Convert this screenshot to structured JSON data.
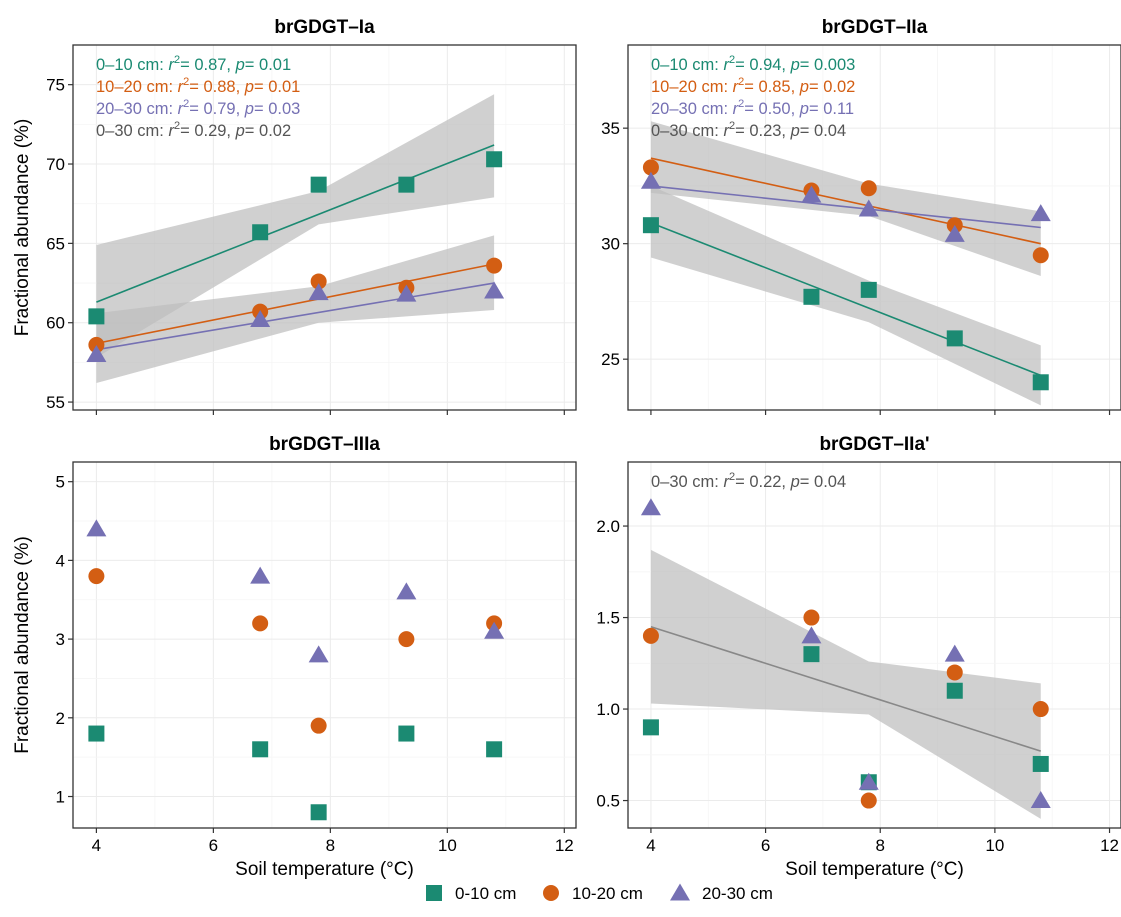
{
  "legend": {
    "items": [
      {
        "label": "0-10 cm",
        "shape": "square",
        "color": "#1b8a72"
      },
      {
        "label": "10-20 cm",
        "shape": "circle",
        "color": "#d35e13"
      },
      {
        "label": "20-30 cm",
        "shape": "triangle",
        "color": "#7570b3"
      }
    ]
  },
  "colors": {
    "depth_0_10": "#1b8a72",
    "depth_10_20": "#d35e13",
    "depth_20_30": "#7570b3",
    "depth_0_30": "#555555",
    "confidence_band": "#bebebe"
  },
  "chart_data": [
    {
      "type": "scatter",
      "title": "brGDGT–Ia",
      "ylabel": "Fractional abundance (%)",
      "xlabel": "",
      "show_x_tick_labels": false,
      "xlim": [
        3.6,
        12.2
      ],
      "ylim": [
        54.5,
        77.5
      ],
      "x_ticks": [
        4,
        6,
        8,
        10,
        12
      ],
      "y_ticks": [
        55,
        60,
        65,
        70,
        75
      ],
      "grid": true,
      "x": [
        4,
        6.8,
        7.8,
        9.3,
        10.8
      ],
      "series": [
        {
          "name": "0-10 cm",
          "shape": "square",
          "color": "#1b8a72",
          "values": [
            60.4,
            65.7,
            68.7,
            68.7,
            70.3
          ]
        },
        {
          "name": "10-20 cm",
          "shape": "circle",
          "color": "#d35e13",
          "values": [
            58.6,
            60.7,
            62.6,
            62.2,
            63.6
          ]
        },
        {
          "name": "20-30 cm",
          "shape": "triangle",
          "color": "#7570b3",
          "values": [
            58.0,
            60.2,
            61.9,
            61.8,
            62.0
          ]
        }
      ],
      "fits": [
        {
          "series": "0-10 cm",
          "color": "#1b8a72",
          "x": [
            4,
            10.8
          ],
          "y": [
            61.3,
            71.2
          ],
          "band_x": [
            4,
            7.8,
            10.8
          ],
          "band_lower": [
            57.8,
            66.2,
            67.9
          ],
          "band_upper": [
            64.9,
            68.3,
            74.4
          ]
        },
        {
          "series": "10-20 cm",
          "color": "#d35e13",
          "x": [
            4,
            10.8
          ],
          "y": [
            58.7,
            63.7
          ],
          "band": false
        },
        {
          "series": "20-30 cm",
          "color": "#7570b3",
          "x": [
            4,
            10.8
          ],
          "y": [
            58.3,
            62.5
          ],
          "band_x": [
            4,
            7.8,
            10.8
          ],
          "band_lower": [
            56.2,
            60.0,
            60.8
          ],
          "band_upper": [
            60.6,
            62.3,
            65.5
          ]
        }
      ],
      "annotations": [
        {
          "depth": "0–10 cm: ",
          "r2": "= 0.87",
          "p": "= 0.01",
          "color": "#1b8a72"
        },
        {
          "depth": "10–20 cm: ",
          "r2": "= 0.88",
          "p": "= 0.01",
          "color": "#d35e13"
        },
        {
          "depth": "20–30 cm: ",
          "r2": "= 0.79",
          "p": "= 0.03",
          "color": "#7570b3"
        },
        {
          "depth": "0–30 cm: ",
          "r2": "= 0.29",
          "p": "= 0.02",
          "color": "#555555"
        }
      ]
    },
    {
      "type": "scatter",
      "title": "brGDGT–IIa",
      "ylabel": "",
      "xlabel": "",
      "show_x_tick_labels": false,
      "xlim": [
        3.6,
        12.2
      ],
      "ylim": [
        22.8,
        38.6
      ],
      "x_ticks": [
        4,
        6,
        8,
        10,
        12
      ],
      "y_ticks": [
        25,
        30,
        35
      ],
      "grid": true,
      "x": [
        4,
        6.8,
        7.8,
        9.3,
        10.8
      ],
      "series": [
        {
          "name": "0-10 cm",
          "shape": "square",
          "color": "#1b8a72",
          "values": [
            30.8,
            27.7,
            28.0,
            25.9,
            24.0
          ]
        },
        {
          "name": "10-20 cm",
          "shape": "circle",
          "color": "#d35e13",
          "values": [
            33.3,
            32.3,
            32.4,
            30.8,
            29.5
          ]
        },
        {
          "name": "20-30 cm",
          "shape": "triangle",
          "color": "#7570b3",
          "values": [
            32.7,
            32.1,
            31.5,
            30.4,
            31.3
          ]
        }
      ],
      "fits": [
        {
          "series": "0-10 cm",
          "color": "#1b8a72",
          "x": [
            4,
            10.8
          ],
          "y": [
            30.9,
            24.3
          ],
          "band_x": [
            4,
            7.8,
            10.8
          ],
          "band_lower": [
            29.4,
            26.6,
            23.0
          ],
          "band_upper": [
            32.5,
            28.4,
            25.6
          ]
        },
        {
          "series": "10-20 cm",
          "color": "#d35e13",
          "x": [
            4,
            10.8
          ],
          "y": [
            33.7,
            30.0
          ],
          "band_x": [
            4,
            7.8,
            10.8
          ],
          "band_lower": [
            32.2,
            31.2,
            28.6
          ],
          "band_upper": [
            35.3,
            32.6,
            31.4
          ]
        },
        {
          "series": "20-30 cm",
          "color": "#7570b3",
          "x": [
            4,
            10.8
          ],
          "y": [
            32.5,
            30.7
          ],
          "band": false
        }
      ],
      "annotations": [
        {
          "depth": "0–10 cm: ",
          "r2": "= 0.94",
          "p": "= 0.003",
          "color": "#1b8a72"
        },
        {
          "depth": "10–20 cm: ",
          "r2": "= 0.85",
          "p": "= 0.02",
          "color": "#d35e13"
        },
        {
          "depth": "20–30 cm: ",
          "r2": "= 0.50",
          "p": "= 0.11",
          "color": "#7570b3"
        },
        {
          "depth": "0–30 cm: ",
          "r2": "= 0.23",
          "p": "= 0.04",
          "color": "#555555"
        }
      ]
    },
    {
      "type": "scatter",
      "title": "brGDGT–IIIa",
      "ylabel": "Fractional abundance (%)",
      "xlabel": "Soil temperature (°C)",
      "show_x_tick_labels": true,
      "xlim": [
        3.6,
        12.2
      ],
      "ylim": [
        0.6,
        5.25
      ],
      "x_ticks": [
        4,
        6,
        8,
        10,
        12
      ],
      "y_ticks": [
        1,
        2,
        3,
        4,
        5
      ],
      "grid": true,
      "x": [
        4,
        6.8,
        7.8,
        9.3,
        10.8
      ],
      "series": [
        {
          "name": "0-10 cm",
          "shape": "square",
          "color": "#1b8a72",
          "values": [
            1.8,
            1.6,
            0.8,
            1.8,
            1.6
          ]
        },
        {
          "name": "10-20 cm",
          "shape": "circle",
          "color": "#d35e13",
          "values": [
            3.8,
            3.2,
            1.9,
            3.0,
            3.2
          ]
        },
        {
          "name": "20-30 cm",
          "shape": "triangle",
          "color": "#7570b3",
          "values": [
            4.4,
            3.8,
            2.8,
            3.6,
            3.1
          ]
        }
      ],
      "fits": [],
      "annotations": []
    },
    {
      "type": "scatter",
      "title": "brGDGT–IIa'",
      "ylabel": "",
      "xlabel": "Soil temperature (°C)",
      "show_x_tick_labels": true,
      "xlim": [
        3.6,
        12.2
      ],
      "ylim": [
        0.35,
        2.35
      ],
      "x_ticks": [
        4,
        6,
        8,
        10,
        12
      ],
      "y_ticks": [
        0.5,
        1.0,
        1.5,
        2.0
      ],
      "y_tick_labels": [
        "0.5",
        "1.0",
        "1.5",
        "2.0"
      ],
      "grid": true,
      "x": [
        4,
        6.8,
        7.8,
        9.3,
        10.8
      ],
      "series": [
        {
          "name": "0-10 cm",
          "shape": "square",
          "color": "#1b8a72",
          "values": [
            0.9,
            1.3,
            0.6,
            1.1,
            0.7
          ]
        },
        {
          "name": "10-20 cm",
          "shape": "circle",
          "color": "#d35e13",
          "values": [
            1.4,
            1.5,
            0.5,
            1.2,
            1.0
          ]
        },
        {
          "name": "20-30 cm",
          "shape": "triangle",
          "color": "#7570b3",
          "values": [
            2.1,
            1.4,
            0.6,
            1.3,
            0.5
          ]
        }
      ],
      "fits": [
        {
          "series": "0-30 cm",
          "color": "#888888",
          "x": [
            4,
            10.8
          ],
          "y": [
            1.45,
            0.77
          ],
          "band_x": [
            4,
            7.8,
            10.8
          ],
          "band_lower": [
            1.03,
            0.97,
            0.4
          ],
          "band_upper": [
            1.87,
            1.26,
            1.14
          ]
        }
      ],
      "annotations": [
        {
          "depth": "0–30 cm: ",
          "r2": "= 0.22",
          "p": "= 0.04",
          "color": "#555555"
        }
      ]
    }
  ]
}
